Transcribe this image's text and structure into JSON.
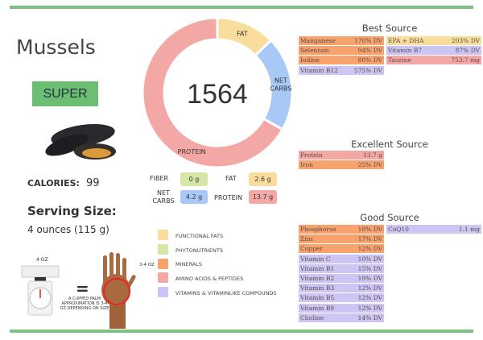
{
  "food": {
    "name": "Mussels",
    "badge": "SUPER",
    "calories_label": "CALORIES:",
    "calories": "99",
    "serving_label": "Serving Size:",
    "serving": "4 ounces (115 g)"
  },
  "donut": {
    "center": "1564",
    "segments": [
      {
        "label": "FAT",
        "grams": 2.6,
        "color": "#f9dd9c"
      },
      {
        "label": "NET CARBS",
        "grams": 4.2,
        "color": "#a8c8f5"
      },
      {
        "label": "PROTEIN",
        "grams": 13.7,
        "color": "#f4a8a5"
      }
    ]
  },
  "macros": {
    "fiber_label": "FIBER",
    "fiber": "0 g",
    "fat_label": "FAT",
    "fat": "2.6 g",
    "carbs_label": "NET CARBS",
    "carbs": "4.2 g",
    "protein_label": "PROTEIN",
    "protein": "13.7 g"
  },
  "legend": [
    "FUNCTIONAL FATS",
    "PHYTONUTRIENTS",
    "MINERALS",
    "AMINO ACIDS & PEPTIDES",
    "VITAMINS & VITAMINLIKE COMPOUNDS"
  ],
  "portion": {
    "scale_label": "4 OZ",
    "equals": "=",
    "palm_label": "3-4 OZ",
    "note": "A CUPPED PALM APPROXIMATION IS 3-4 OZ DEPENDING ON SIZE"
  },
  "best": {
    "title": "Best Source",
    "col1": [
      [
        "Manganese",
        "170% DV",
        "min"
      ],
      [
        "Selenium",
        "94% DV",
        "min"
      ],
      [
        "Iodine",
        "80% DV",
        "min"
      ],
      [
        "Vitamin B12",
        "575% DV",
        "vit"
      ]
    ],
    "col2": [
      [
        "EPA + DHA",
        "203% DV",
        "fat"
      ],
      [
        "Vitamin B7",
        "87% DV",
        "vit"
      ],
      [
        "Taurine",
        "753.7 mg",
        "ami"
      ]
    ]
  },
  "excellent": {
    "title": "Excellent Source",
    "col1": [
      [
        "Protein",
        "13.7 g",
        "ami"
      ],
      [
        "Iron",
        "25% DV",
        "min"
      ]
    ],
    "col2": []
  },
  "good": {
    "title": "Good Source",
    "col1": [
      [
        "Phosphorus",
        "18% DV",
        "min"
      ],
      [
        "Zinc",
        "17% DV",
        "min"
      ],
      [
        "Copper",
        "12% DV",
        "min"
      ],
      [
        "Vitamin C",
        "10% DV",
        "vit"
      ],
      [
        "Vitamin B1",
        "15% DV",
        "vit"
      ],
      [
        "Vitamin B2",
        "19% DV",
        "vit"
      ],
      [
        "Vitamin B3",
        "12% DV",
        "vit"
      ],
      [
        "Vitamin B5",
        "12% DV",
        "vit"
      ],
      [
        "Vitamin B9",
        "12% DV",
        "vit"
      ],
      [
        "Choline",
        "14% DV",
        "vit"
      ]
    ],
    "col2": [
      [
        "CoQ10",
        "1.1 mg",
        "vit"
      ]
    ]
  }
}
